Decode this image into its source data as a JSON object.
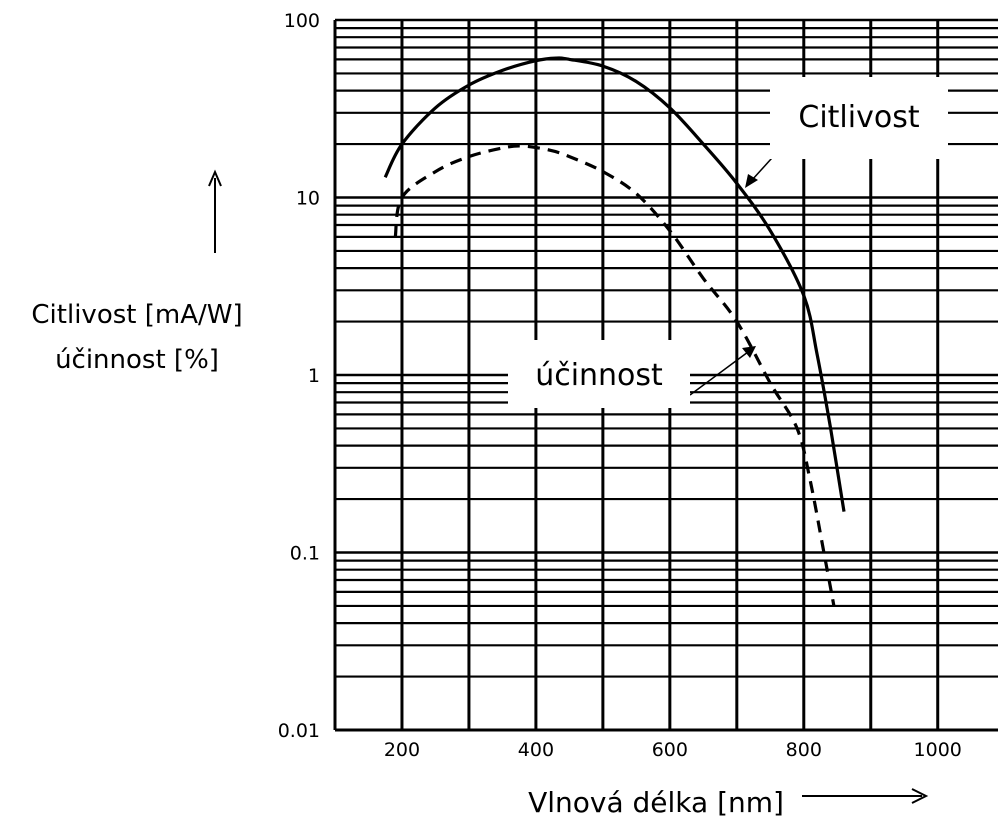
{
  "chart_data": {
    "type": "line",
    "ylabel_lines": [
      "Citlivost [mA/W]",
      "účinnost [%]"
    ],
    "xlabel": "Vlnová délka [nm]",
    "yscale": "log",
    "ylim": [
      0.01,
      100
    ],
    "xlim": [
      100,
      1090
    ],
    "xticks": [
      200,
      400,
      600,
      800,
      1000
    ],
    "yticks": [
      100,
      10,
      1,
      0.1,
      0.01
    ],
    "ytick_labels": [
      "100",
      "10",
      "1",
      "0.1",
      "0.01"
    ],
    "grid": true,
    "series": [
      {
        "name": "Citlivost",
        "style": "solid",
        "x": [
          175,
          200,
          250,
          300,
          350,
          400,
          430,
          450,
          500,
          550,
          600,
          650,
          700,
          750,
          800,
          820,
          840,
          860
        ],
        "y": [
          13,
          20,
          32,
          43,
          52,
          59,
          61,
          60,
          55,
          45,
          32,
          20,
          12,
          6.5,
          2.8,
          1.3,
          0.5,
          0.17
        ]
      },
      {
        "name": "účinnost",
        "style": "dashed",
        "x": [
          190,
          200,
          250,
          300,
          350,
          380,
          420,
          450,
          500,
          550,
          600,
          650,
          700,
          750,
          790,
          810,
          830,
          845
        ],
        "y": [
          6,
          10,
          14,
          17,
          19,
          19.5,
          18.5,
          17,
          14,
          10.5,
          6.5,
          3.5,
          2,
          0.9,
          0.5,
          0.25,
          0.1,
          0.05
        ]
      }
    ]
  }
}
